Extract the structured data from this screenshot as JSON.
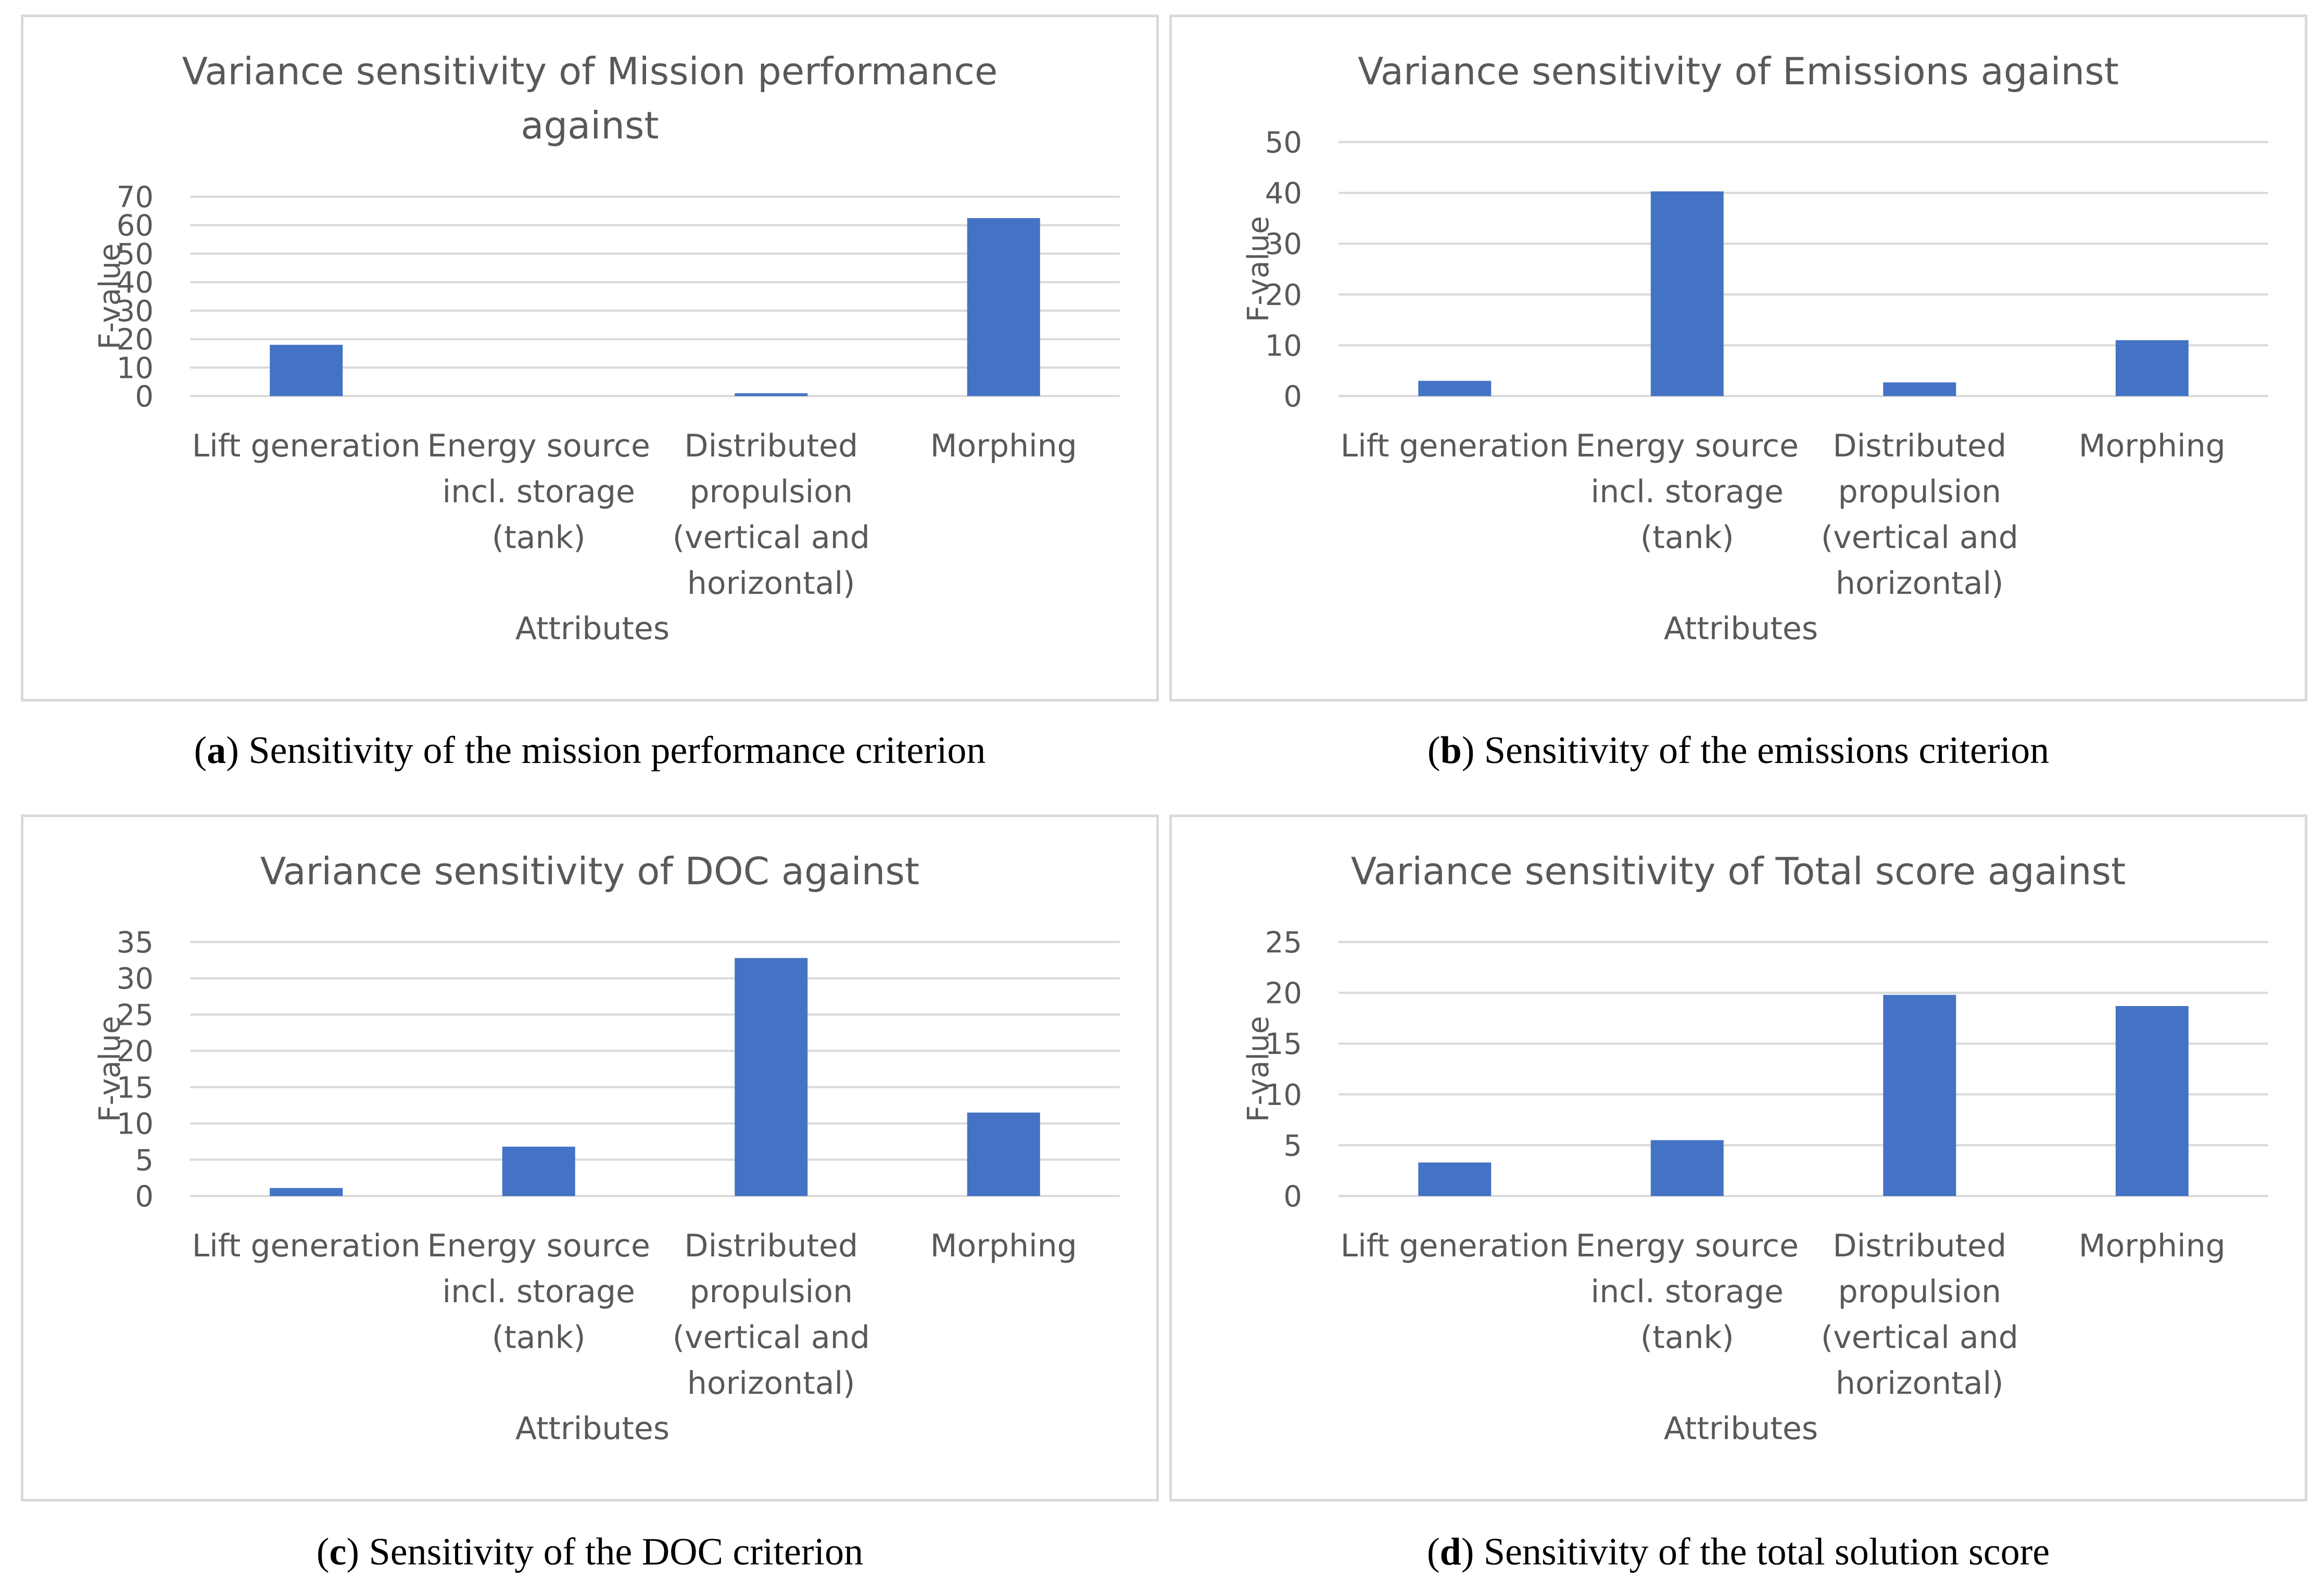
{
  "chart_data": [
    {
      "type": "bar",
      "title": "Variance sensitivity of Mission performance against",
      "xlabel": "Attributes",
      "ylabel": "F-value",
      "categories": [
        "Lift generation",
        "Energy source incl. storage (tank)",
        "Distributed propulsion (vertical and horizontal)",
        "Morphing"
      ],
      "values": [
        18,
        0,
        1,
        62.5
      ],
      "ylim": [
        0,
        70
      ],
      "yticks": [
        0,
        10,
        20,
        30,
        40,
        50,
        60,
        70
      ],
      "grid": true,
      "color": "#4472c4",
      "caption_letter": "a",
      "caption_text": " Sensitivity of the mission performance criterion"
    },
    {
      "type": "bar",
      "title": "Variance sensitivity of Emissions against",
      "xlabel": "Attributes",
      "ylabel": "F-value",
      "categories": [
        "Lift generation",
        "Energy source incl. storage (tank)",
        "Distributed propulsion (vertical and horizontal)",
        "Morphing"
      ],
      "values": [
        3,
        40.3,
        2.7,
        11
      ],
      "ylim": [
        0,
        50
      ],
      "yticks": [
        0,
        10,
        20,
        30,
        40,
        50
      ],
      "grid": true,
      "color": "#4472c4",
      "caption_letter": "b",
      "caption_text": " Sensitivity of the emissions criterion"
    },
    {
      "type": "bar",
      "title": "Variance sensitivity of DOC against",
      "xlabel": "Attributes",
      "ylabel": "F-value",
      "categories": [
        "Lift generation",
        "Energy source incl. storage (tank)",
        "Distributed propulsion (vertical and horizontal)",
        "Morphing"
      ],
      "values": [
        1.1,
        6.8,
        32.8,
        11.5
      ],
      "ylim": [
        0,
        35
      ],
      "yticks": [
        0,
        5,
        10,
        15,
        20,
        25,
        30,
        35
      ],
      "grid": true,
      "color": "#4472c4",
      "caption_letter": "c",
      "caption_text": " Sensitivity of the DOC criterion"
    },
    {
      "type": "bar",
      "title": "Variance sensitivity of Total score against",
      "xlabel": "Attributes",
      "ylabel": "F-value",
      "categories": [
        "Lift generation",
        "Energy source incl. storage (tank)",
        "Distributed propulsion (vertical and horizontal)",
        "Morphing"
      ],
      "values": [
        3.3,
        5.5,
        19.8,
        18.7
      ],
      "ylim": [
        0,
        25
      ],
      "yticks": [
        0,
        5,
        10,
        15,
        20,
        25
      ],
      "grid": true,
      "color": "#4472c4",
      "caption_letter": "d",
      "caption_text": " Sensitivity of the total solution score"
    }
  ],
  "category_labels_wrapped": [
    "Lift generation",
    "Energy source\nincl. storage\n(tank)",
    "Distributed\npropulsion\n(vertical and\nhorizontal)",
    "Morphing"
  ],
  "titles_wrapped": [
    "Variance sensitivity of Mission performance\nagainst",
    "Variance sensitivity of Emissions against",
    "Variance sensitivity of DOC against",
    "Variance sensitivity of Total score against"
  ]
}
